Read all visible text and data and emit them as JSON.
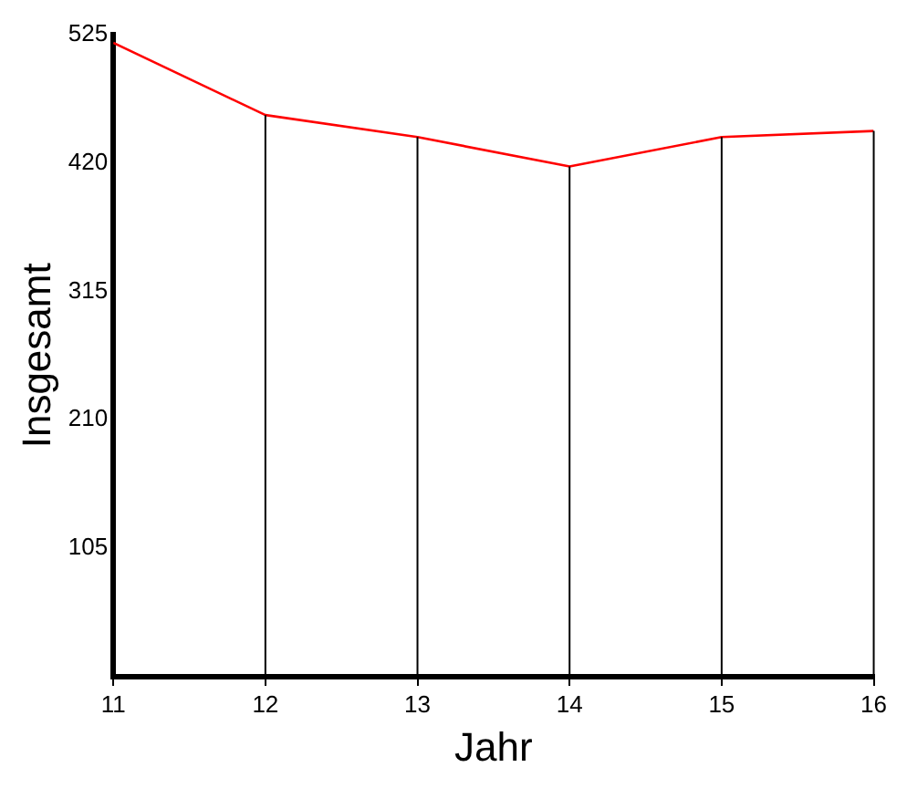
{
  "chart_data": {
    "type": "line",
    "xlabel": "Jahr",
    "ylabel": "Insgesamt",
    "x": [
      11,
      12,
      13,
      14,
      15,
      16
    ],
    "series": [
      {
        "color": "#ff0000",
        "values": [
          518,
          459,
          441,
          417,
          441,
          446
        ]
      }
    ],
    "xlim": [
      11,
      16
    ],
    "xticks": [
      11,
      12,
      13,
      14,
      15,
      16
    ],
    "ylim": [
      0,
      525
    ],
    "yticks": [
      105,
      210,
      315,
      420,
      525
    ],
    "grid": "x",
    "legend": false,
    "marker": "none",
    "line_style": "solid"
  }
}
